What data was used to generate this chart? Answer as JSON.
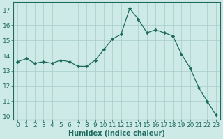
{
  "x": [
    0,
    1,
    2,
    3,
    4,
    5,
    6,
    7,
    8,
    9,
    10,
    11,
    12,
    13,
    14,
    15,
    16,
    17,
    18,
    19,
    20,
    21,
    22,
    23
  ],
  "y": [
    13.6,
    13.8,
    13.5,
    13.6,
    13.5,
    13.7,
    13.6,
    13.3,
    13.3,
    13.7,
    14.4,
    15.1,
    15.4,
    17.1,
    16.4,
    15.5,
    15.7,
    15.5,
    15.3,
    14.1,
    13.2,
    11.9,
    11.0,
    10.1
  ],
  "line_color": "#1e6b5e",
  "marker": "D",
  "marker_size": 2.2,
  "bg_color": "#ceeae7",
  "grid_color": "#a8ccc8",
  "xlabel": "Humidex (Indice chaleur)",
  "xlabel_fontsize": 7,
  "tick_fontsize": 6.5,
  "ylim": [
    9.8,
    17.5
  ],
  "xlim": [
    -0.5,
    23.5
  ],
  "yticks": [
    10,
    11,
    12,
    13,
    14,
    15,
    16,
    17
  ],
  "xticks": [
    0,
    1,
    2,
    3,
    4,
    5,
    6,
    7,
    8,
    9,
    10,
    11,
    12,
    13,
    14,
    15,
    16,
    17,
    18,
    19,
    20,
    21,
    22,
    23
  ]
}
